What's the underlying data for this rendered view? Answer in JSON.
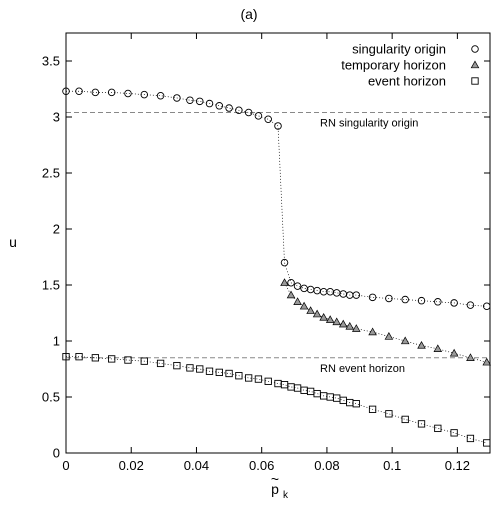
{
  "chart_data": {
    "type": "scatter",
    "title": "(a)",
    "xlabel": "p",
    "xlabel_sub": "k",
    "xlabel_accent": "~",
    "ylabel": "u",
    "xlim": [
      0,
      0.13
    ],
    "ylim": [
      0,
      3.75
    ],
    "x_ticks": [
      0,
      0.02,
      0.04,
      0.06,
      0.08,
      0.1,
      0.12
    ],
    "x_tick_labels": [
      "0",
      "0.02",
      "0.04",
      "0.06",
      "0.08",
      "0.1",
      "0.12"
    ],
    "y_ticks": [
      0,
      0.5,
      1,
      1.5,
      2,
      2.5,
      3,
      3.5
    ],
    "y_tick_labels": [
      "0",
      "0.5",
      "1",
      "1.5",
      "2",
      "2.5",
      "3",
      "3.5"
    ],
    "grid": false,
    "legend_position": "top-right",
    "reference_lines": [
      {
        "label": "RN singularity origin",
        "y": 3.04
      },
      {
        "label": "RN event horizon",
        "y": 0.85
      }
    ],
    "series": [
      {
        "name": "singularity origin",
        "marker": "circle",
        "x": [
          0,
          0.004,
          0.009,
          0.014,
          0.019,
          0.024,
          0.029,
          0.034,
          0.038,
          0.041,
          0.044,
          0.047,
          0.05,
          0.053,
          0.056,
          0.059,
          0.062,
          0.065,
          0.067,
          0.069,
          0.071,
          0.073,
          0.075,
          0.077,
          0.079,
          0.081,
          0.083,
          0.085,
          0.087,
          0.089,
          0.094,
          0.099,
          0.104,
          0.109,
          0.114,
          0.119,
          0.124,
          0.129
        ],
        "y": [
          3.23,
          3.23,
          3.22,
          3.22,
          3.21,
          3.2,
          3.19,
          3.17,
          3.15,
          3.14,
          3.12,
          3.1,
          3.08,
          3.06,
          3.04,
          3.01,
          2.98,
          2.92,
          1.7,
          1.52,
          1.49,
          1.47,
          1.46,
          1.45,
          1.44,
          1.44,
          1.43,
          1.42,
          1.41,
          1.41,
          1.39,
          1.38,
          1.37,
          1.36,
          1.35,
          1.34,
          1.32,
          1.31
        ]
      },
      {
        "name": "temporary horizon",
        "marker": "triangle",
        "x": [
          0.067,
          0.069,
          0.071,
          0.073,
          0.075,
          0.077,
          0.079,
          0.081,
          0.083,
          0.085,
          0.087,
          0.089,
          0.094,
          0.099,
          0.104,
          0.109,
          0.114,
          0.119,
          0.124,
          0.129
        ],
        "y": [
          1.52,
          1.41,
          1.35,
          1.31,
          1.27,
          1.24,
          1.21,
          1.19,
          1.17,
          1.15,
          1.13,
          1.11,
          1.08,
          1.04,
          1.0,
          0.96,
          0.93,
          0.89,
          0.85,
          0.81
        ]
      },
      {
        "name": "event horizon",
        "marker": "square",
        "x": [
          0,
          0.004,
          0.009,
          0.014,
          0.019,
          0.024,
          0.029,
          0.034,
          0.038,
          0.041,
          0.044,
          0.047,
          0.05,
          0.053,
          0.056,
          0.059,
          0.062,
          0.065,
          0.067,
          0.069,
          0.071,
          0.073,
          0.075,
          0.077,
          0.079,
          0.081,
          0.083,
          0.085,
          0.087,
          0.089,
          0.094,
          0.099,
          0.104,
          0.109,
          0.114,
          0.119,
          0.124,
          0.129
        ],
        "y": [
          0.86,
          0.86,
          0.85,
          0.84,
          0.83,
          0.82,
          0.8,
          0.78,
          0.76,
          0.75,
          0.73,
          0.72,
          0.71,
          0.69,
          0.67,
          0.66,
          0.64,
          0.62,
          0.61,
          0.59,
          0.58,
          0.56,
          0.55,
          0.53,
          0.51,
          0.5,
          0.49,
          0.47,
          0.45,
          0.44,
          0.39,
          0.35,
          0.3,
          0.26,
          0.22,
          0.18,
          0.13,
          0.09
        ]
      }
    ]
  }
}
